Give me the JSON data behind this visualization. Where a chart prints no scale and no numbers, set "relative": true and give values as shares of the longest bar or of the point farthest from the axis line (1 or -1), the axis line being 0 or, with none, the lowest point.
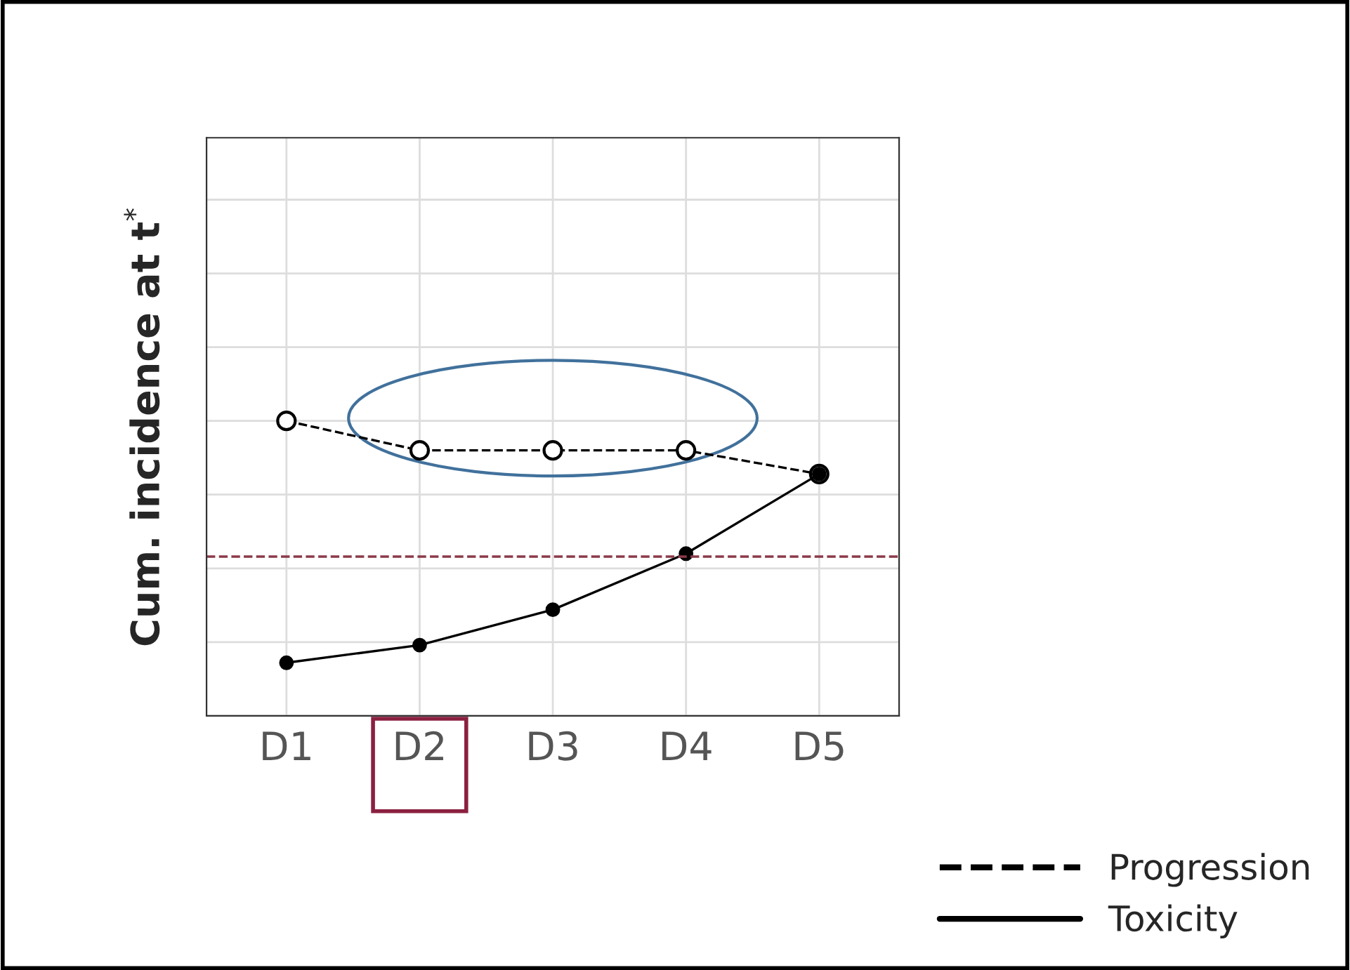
{
  "chart_data": {
    "type": "line",
    "relative": true,
    "ylabel": "Cum. incidence at t$^{*}$",
    "categories": [
      "D1",
      "D2",
      "D3",
      "D4",
      "D5"
    ],
    "series": [
      {
        "name": "Progression",
        "color": "#000000",
        "line_style": "dashed",
        "values": [
          1.0,
          0.9,
          0.9,
          0.9,
          0.82
        ]
      },
      {
        "name": "Toxicity",
        "color": "#000000",
        "line_style": "solid",
        "values": [
          0.18,
          0.24,
          0.36,
          0.55,
          0.82
        ]
      }
    ],
    "marker": "circle",
    "ref_lines": [
      {
        "axis": "y",
        "value": 0.54,
        "color": "#8b3a4a",
        "line_style": "dashed"
      }
    ],
    "grid": true,
    "legend": "bottom right"
  }
}
